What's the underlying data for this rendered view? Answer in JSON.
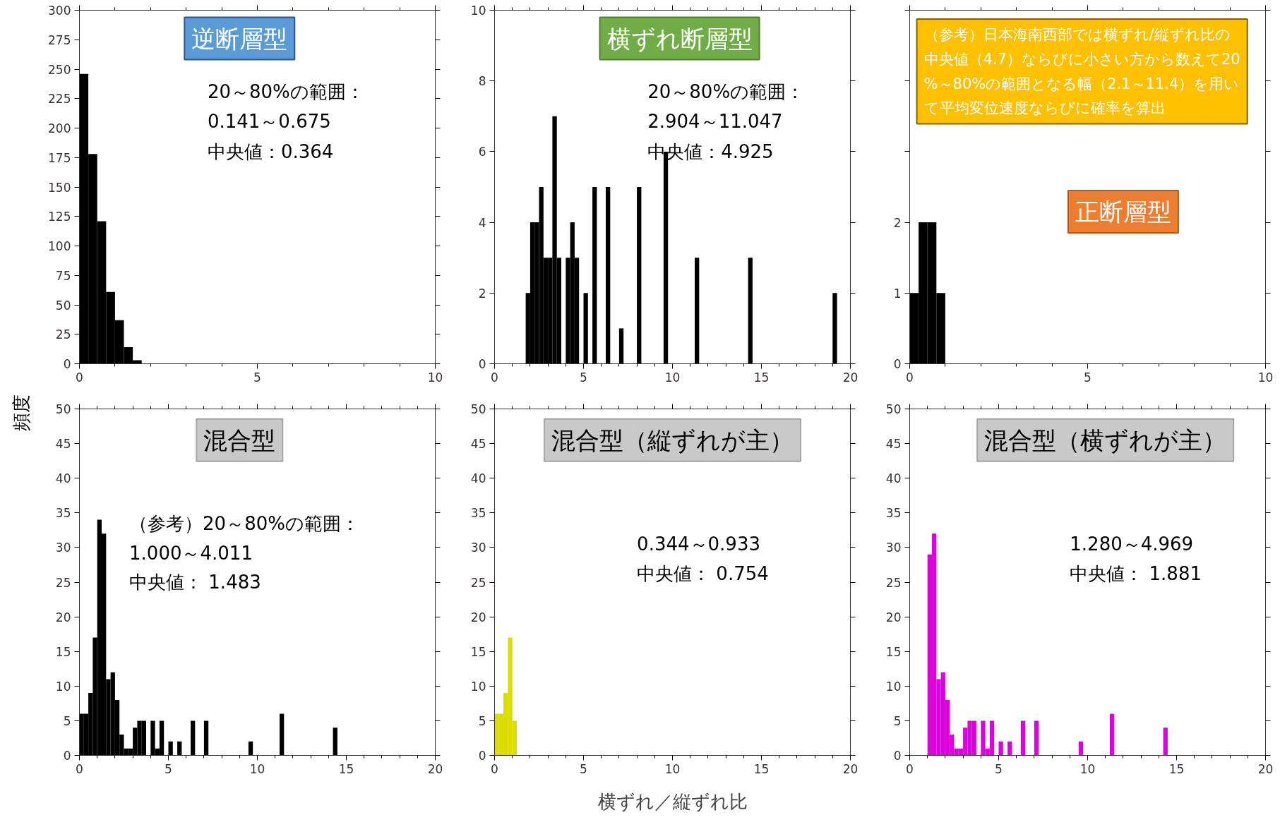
{
  "chart_data": [
    {
      "type": "histogram",
      "title": "逆断層型",
      "ylabel": "頻度",
      "color": "#000000",
      "bins": [
        0,
        0.25,
        0.5,
        0.75,
        1,
        1.25,
        1.5,
        1.75
      ],
      "values": [
        246,
        178,
        121,
        61,
        37,
        14,
        3
      ],
      "xlim": [
        0,
        10
      ],
      "xticks": [
        0,
        5,
        10
      ],
      "ylim": [
        0,
        300
      ],
      "yticks": [
        0,
        25,
        50,
        75,
        100,
        125,
        150,
        175,
        200,
        225,
        250,
        275,
        300
      ],
      "annotations": [
        "20～80%の範囲：",
        "0.141～0.675",
        "中央値：0.364"
      ]
    },
    {
      "type": "histogram",
      "title": "横ずれ断層型",
      "color": "#000000",
      "bins": [
        1.75,
        2,
        2.25,
        2.5,
        2.75,
        3,
        3.25,
        3.5,
        3.75,
        4,
        4.25,
        4.5,
        4.75,
        5,
        5.25,
        5.5,
        5.75,
        6,
        6.25,
        6.5,
        6.75,
        7,
        7.25,
        7.5,
        7.75,
        8,
        8.25,
        8.5,
        8.75,
        9,
        9.25,
        9.5,
        9.75,
        10,
        10.25,
        10.5,
        10.75,
        11,
        11.25,
        11.5,
        11.75,
        12,
        12.25,
        12.5,
        12.75,
        13,
        13.25,
        13.5,
        13.75,
        14,
        14.25,
        14.5,
        14.75,
        15,
        15.25,
        15.5,
        15.75,
        16,
        16.25,
        16.5,
        16.75,
        17,
        17.25,
        17.5,
        17.75,
        18,
        18.25,
        18.5,
        18.75,
        19,
        19.25
      ],
      "values": [
        2,
        4,
        4,
        5,
        3,
        3,
        7,
        3,
        0,
        3,
        4,
        3,
        0,
        2,
        0,
        5,
        0,
        0,
        5,
        0,
        0,
        1,
        0,
        0,
        0,
        5,
        0,
        0,
        0,
        0,
        0,
        6,
        0,
        0,
        0,
        0,
        0,
        0,
        3,
        0,
        0,
        0,
        0,
        0,
        0,
        0,
        0,
        0,
        0,
        0,
        3,
        0,
        0,
        0,
        0,
        0,
        0,
        0,
        0,
        0,
        0,
        0,
        0,
        0,
        0,
        0,
        0,
        0,
        0,
        2
      ],
      "xlim": [
        0,
        20
      ],
      "xticks": [
        0,
        5,
        10,
        15,
        20
      ],
      "ylim": [
        0,
        10
      ],
      "yticks": [
        0,
        2,
        4,
        6,
        8,
        10
      ],
      "annotations": [
        "20～80%の範囲：",
        "2.904～11.047",
        "中央値：4.925"
      ]
    },
    {
      "type": "histogram",
      "title": "正断層型",
      "color": "#000000",
      "bins": [
        0,
        0.25,
        0.5,
        0.75,
        1
      ],
      "values": [
        1,
        2,
        2,
        1
      ],
      "xlim": [
        0,
        10
      ],
      "xticks": [
        0,
        5,
        10
      ],
      "ylim": [
        0,
        5
      ],
      "yticks": [
        0,
        1,
        2,
        {
          "value": 3,
          "label": null
        },
        {
          "value": 4,
          "label": null
        },
        {
          "value": 5,
          "label": null
        }
      ],
      "annotations": [
        "（参考）日本海南西部では横ずれ/縦ずれ比の中央値（4.7）ならびに小さい方から数えて20%～80%の範囲となる幅（2.1～11.4）を用いて平均変位速度ならびに確率を算出"
      ]
    },
    {
      "type": "histogram",
      "title": "混合型",
      "color": "#000000",
      "bins": [
        0,
        0.25,
        0.5,
        0.75,
        1,
        1.25,
        1.5,
        1.75,
        2,
        2.25,
        2.5,
        2.75,
        3,
        3.25,
        3.5,
        3.75,
        4,
        4.25,
        4.5,
        4.75,
        5,
        5.25,
        5.5,
        5.75,
        6,
        6.25,
        6.5,
        6.75,
        7,
        7.25,
        7.5,
        7.75,
        8,
        8.25,
        8.5,
        8.75,
        9,
        9.25,
        9.5,
        9.75,
        10,
        10.25,
        10.5,
        10.75,
        11,
        11.25,
        11.5,
        11.75,
        12,
        12.25,
        12.5,
        12.75,
        13,
        13.25,
        13.5,
        13.75,
        14,
        14.25,
        14.5
      ],
      "values": [
        6,
        6,
        9,
        17,
        34,
        32,
        11,
        12,
        8,
        3,
        1,
        1,
        4,
        5,
        5,
        0,
        5,
        1,
        5,
        0,
        2,
        0,
        2,
        0,
        0,
        5,
        0,
        0,
        5,
        0,
        0,
        0,
        0,
        0,
        0,
        0,
        0,
        0,
        2,
        0,
        0,
        0,
        0,
        0,
        0,
        6,
        0,
        0,
        0,
        0,
        0,
        0,
        0,
        0,
        0,
        0,
        0,
        4
      ],
      "xlim": [
        0,
        20
      ],
      "xticks": [
        0,
        5,
        10,
        15,
        20
      ],
      "ylim": [
        0,
        50
      ],
      "yticks": [
        0,
        5,
        10,
        15,
        20,
        25,
        30,
        35,
        40,
        45,
        50
      ],
      "annotations": [
        "（参考）20～80%の範囲：",
        "1.000～4.011",
        "中央値： 1.483"
      ]
    },
    {
      "type": "histogram",
      "title": "混合型（縦ずれが主）",
      "xlabel": "横ずれ／縦ずれ比",
      "color": "#dcdc00",
      "bins": [
        0,
        0.25,
        0.5,
        0.75,
        1,
        1.25
      ],
      "values": [
        6,
        6,
        9,
        17,
        5
      ],
      "xlim": [
        0,
        20
      ],
      "xticks": [
        0,
        5,
        10,
        15,
        20
      ],
      "ylim": [
        0,
        50
      ],
      "yticks": [
        0,
        5,
        10,
        15,
        20,
        25,
        30,
        35,
        40,
        45,
        50
      ],
      "annotations": [
        "0.344～0.933",
        "中央値： 0.754"
      ]
    },
    {
      "type": "histogram",
      "title": "混合型（横ずれが主）",
      "color": "#dc00dc",
      "bins": [
        1,
        1.25,
        1.5,
        1.75,
        2,
        2.25,
        2.5,
        2.75,
        3,
        3.25,
        3.5,
        3.75,
        4,
        4.25,
        4.5,
        4.75,
        5,
        5.25,
        5.5,
        5.75,
        6,
        6.25,
        6.5,
        6.75,
        7,
        7.25,
        7.5,
        7.75,
        8,
        8.25,
        8.5,
        8.75,
        9,
        9.25,
        9.5,
        9.75,
        10,
        10.25,
        10.5,
        10.75,
        11,
        11.25,
        11.5,
        11.75,
        12,
        12.25,
        12.5,
        12.75,
        13,
        13.25,
        13.5,
        13.75,
        14,
        14.25,
        14.5
      ],
      "values": [
        29,
        32,
        11,
        12,
        8,
        3,
        1,
        1,
        4,
        5,
        5,
        0,
        5,
        1,
        5,
        0,
        2,
        0,
        2,
        0,
        0,
        5,
        0,
        0,
        5,
        0,
        0,
        0,
        0,
        0,
        0,
        0,
        0,
        0,
        2,
        0,
        0,
        0,
        0,
        0,
        0,
        6,
        0,
        0,
        0,
        0,
        0,
        0,
        0,
        0,
        0,
        0,
        0,
        4
      ],
      "xlim": [
        0,
        20
      ],
      "xticks": [
        0,
        5,
        10,
        15,
        20
      ],
      "ylim": [
        0,
        50
      ],
      "yticks": [
        0,
        5,
        10,
        15,
        20,
        25,
        30,
        35,
        40,
        45,
        50
      ],
      "annotations": [
        "1.280～4.969",
        "中央値： 1.881"
      ]
    }
  ]
}
